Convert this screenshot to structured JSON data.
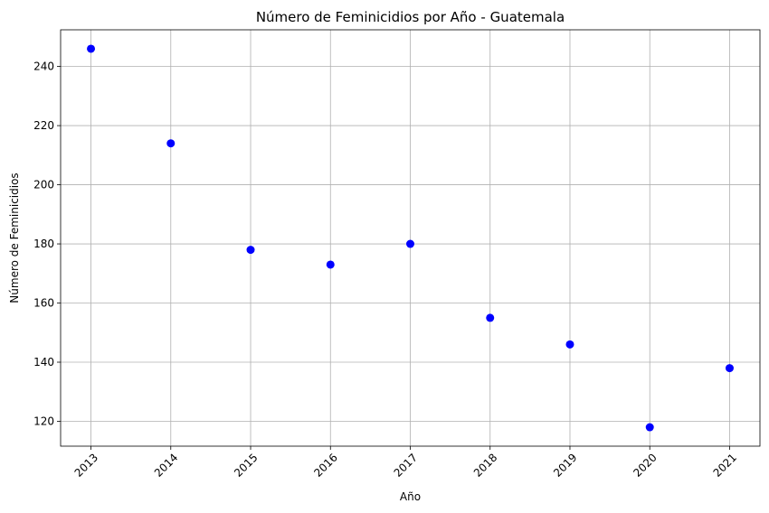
{
  "chart_data": {
    "type": "scatter",
    "title": "Número de Feminicidios por Año - Guatemala",
    "xlabel": "Año",
    "ylabel": "Número de Feminicidios",
    "x": [
      2013,
      2014,
      2015,
      2016,
      2017,
      2018,
      2019,
      2020,
      2021
    ],
    "y": [
      246,
      214,
      178,
      173,
      180,
      155,
      146,
      118,
      138
    ],
    "xlim": [
      2012.62,
      2021.38
    ],
    "ylim": [
      111.6,
      252.4
    ],
    "xticks": [
      2013,
      2014,
      2015,
      2016,
      2017,
      2018,
      2019,
      2020,
      2021
    ],
    "yticks": [
      120,
      140,
      160,
      180,
      200,
      220,
      240
    ],
    "xtick_rotation": 45,
    "grid": true,
    "marker_color": "#0000ff"
  }
}
